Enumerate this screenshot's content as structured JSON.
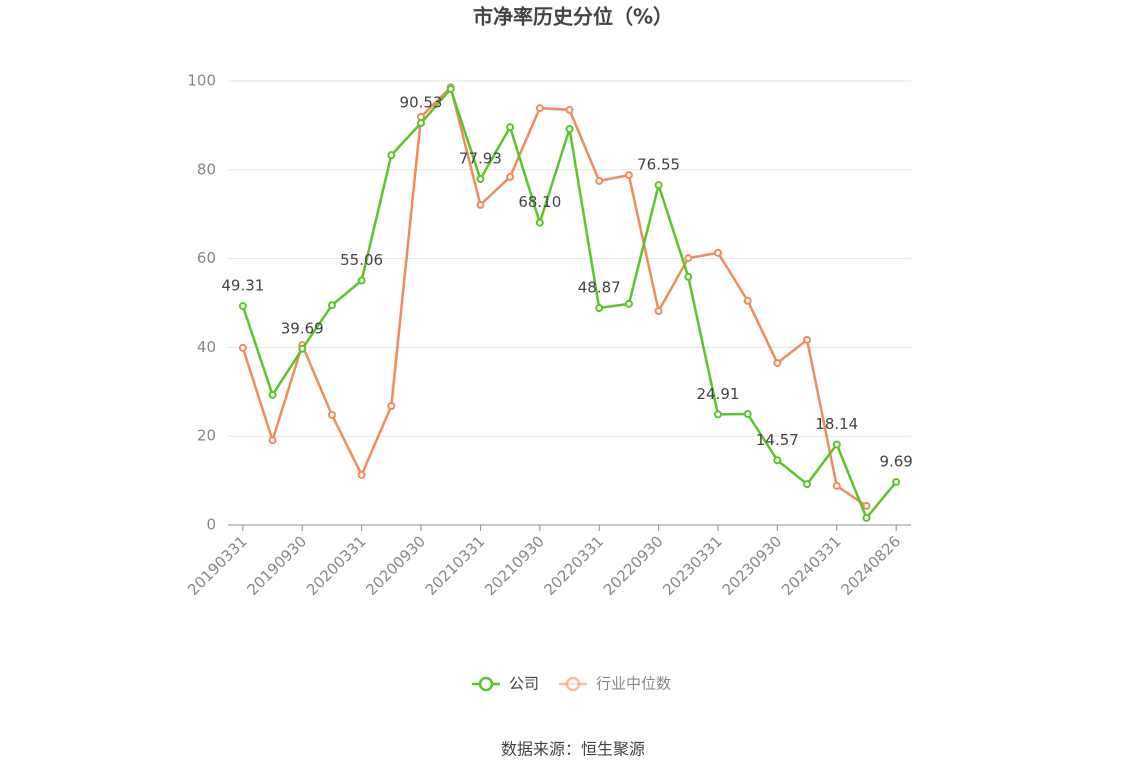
{
  "chart_data": {
    "type": "line",
    "title": "市净率历史分位（%）",
    "categories": [
      "20190331",
      null,
      "20190930",
      null,
      "20200331",
      null,
      "20200930",
      null,
      "20210331",
      null,
      "20210930",
      null,
      "20220331",
      null,
      "20220930",
      null,
      "20230331",
      null,
      "20230930",
      null,
      "20240331",
      null,
      "20240826"
    ],
    "series": [
      {
        "name": "公司",
        "color": "#5ac528",
        "values": [
          49.31,
          29.3,
          39.69,
          49.5,
          55.06,
          83.3,
          90.53,
          98.2,
          77.93,
          89.6,
          68.1,
          89.2,
          48.87,
          49.8,
          76.55,
          55.9,
          24.91,
          25.0,
          14.57,
          9.2,
          18.14,
          1.6,
          9.69
        ],
        "value_labels": [
          "49.31",
          null,
          "39.69",
          null,
          "55.06",
          null,
          "90.53",
          null,
          "77.93",
          null,
          "68.10",
          null,
          "48.87",
          null,
          "76.55",
          null,
          "24.91",
          null,
          "14.57",
          null,
          "18.14",
          null,
          "9.69"
        ]
      },
      {
        "name": "行业中位数",
        "color": "#f08c5a",
        "values": [
          39.9,
          19.1,
          40.5,
          24.8,
          11.3,
          26.8,
          91.9,
          98.6,
          72.1,
          78.4,
          93.9,
          93.5,
          77.5,
          78.8,
          48.2,
          60.1,
          61.3,
          50.5,
          36.5,
          41.7,
          8.8,
          4.3,
          null
        ]
      }
    ],
    "ylim": [
      0,
      100
    ],
    "yticks": [
      0,
      20,
      40,
      60,
      80,
      100
    ],
    "grid": true,
    "source": "数据来源：恒生聚源"
  }
}
